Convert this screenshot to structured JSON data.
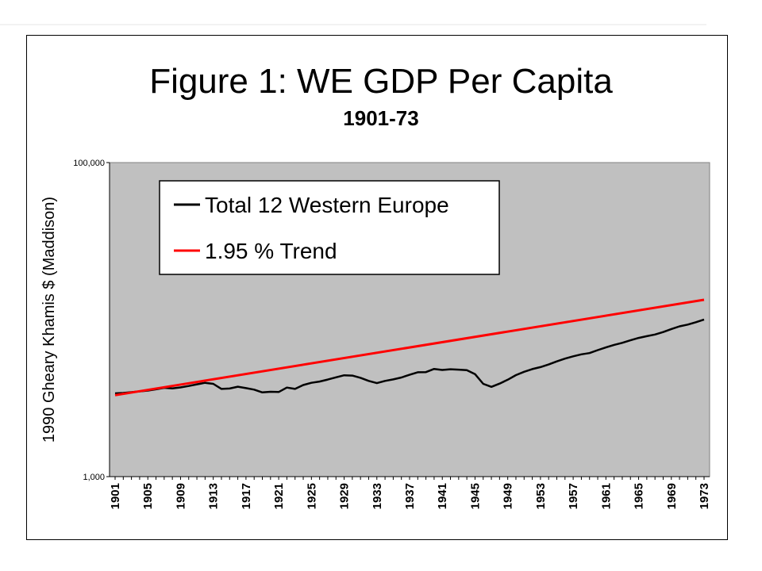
{
  "chart_data": {
    "type": "line",
    "title": "Figure 1: WE GDP Per Capita",
    "subtitle": "1901-73",
    "ylabel": "1990 Gheary Khamis $ (Maddison)",
    "xlabel": "",
    "y_scale": "log",
    "ylim": [
      1000,
      100000
    ],
    "y_ticks": [
      "1,000",
      "100,000"
    ],
    "x_range": [
      1901,
      1973
    ],
    "x_ticks": [
      "1901",
      "1905",
      "1909",
      "1913",
      "1917",
      "1921",
      "1925",
      "1929",
      "1933",
      "1937",
      "1941",
      "1945",
      "1949",
      "1953",
      "1957",
      "1961",
      "1965",
      "1969",
      "1973"
    ],
    "plot_background": "#c0c0c0",
    "legend_position": "top-left",
    "series": [
      {
        "name": "Total 12 Western Europe",
        "color": "#000000",
        "x": [
          1901,
          1902,
          1903,
          1904,
          1905,
          1906,
          1907,
          1908,
          1909,
          1910,
          1911,
          1912,
          1913,
          1914,
          1915,
          1916,
          1917,
          1918,
          1919,
          1920,
          1921,
          1922,
          1923,
          1924,
          1925,
          1926,
          1927,
          1928,
          1929,
          1930,
          1931,
          1932,
          1933,
          1934,
          1935,
          1936,
          1937,
          1938,
          1939,
          1940,
          1941,
          1942,
          1943,
          1944,
          1945,
          1946,
          1947,
          1948,
          1949,
          1950,
          1951,
          1952,
          1953,
          1954,
          1955,
          1956,
          1957,
          1958,
          1959,
          1960,
          1961,
          1962,
          1963,
          1964,
          1965,
          1966,
          1967,
          1968,
          1969,
          1970,
          1971,
          1972,
          1973
        ],
        "values": [
          3390,
          3410,
          3450,
          3490,
          3530,
          3600,
          3680,
          3650,
          3700,
          3780,
          3870,
          3960,
          3900,
          3620,
          3640,
          3740,
          3660,
          3580,
          3440,
          3470,
          3460,
          3690,
          3620,
          3830,
          3960,
          4030,
          4150,
          4290,
          4420,
          4400,
          4260,
          4070,
          3940,
          4070,
          4160,
          4280,
          4450,
          4620,
          4630,
          4850,
          4780,
          4830,
          4800,
          4760,
          4500,
          3900,
          3730,
          3910,
          4140,
          4430,
          4650,
          4840,
          4980,
          5180,
          5420,
          5640,
          5840,
          6010,
          6120,
          6390,
          6650,
          6900,
          7110,
          7380,
          7640,
          7840,
          8040,
          8330,
          8710,
          9060,
          9290,
          9620,
          10010
        ]
      },
      {
        "name": "1.95 % Trend",
        "color": "#ff0000",
        "x": [
          1901,
          1973
        ],
        "values": [
          3300,
          13380
        ]
      }
    ]
  }
}
